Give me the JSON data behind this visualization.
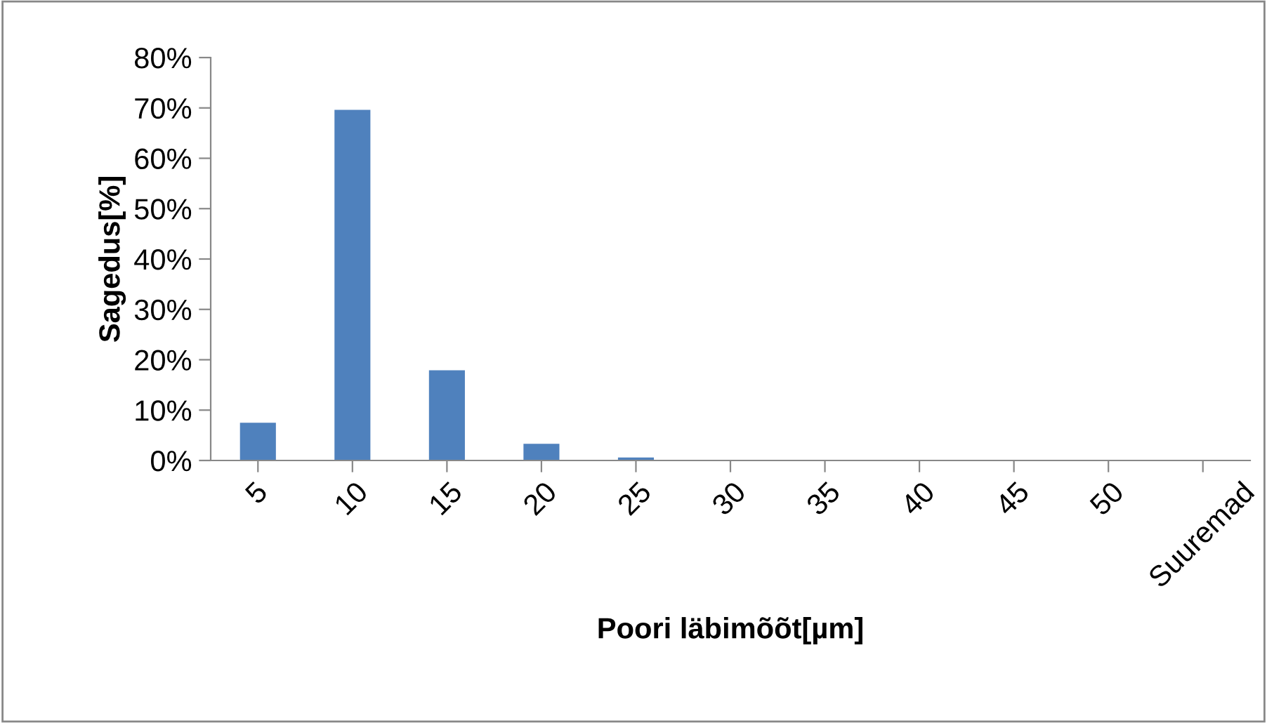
{
  "chart_data": {
    "type": "bar",
    "xlabel": "Poori läbimõõt[µm]",
    "ylabel": "Sagedus[%]",
    "categories": [
      "5",
      "10",
      "15",
      "20",
      "25",
      "30",
      "35",
      "40",
      "45",
      "50",
      "Suuremad"
    ],
    "values": [
      7.5,
      69.6,
      17.9,
      3.3,
      0.6,
      0,
      0,
      0,
      0,
      0,
      0
    ],
    "color": "#4f81bd",
    "ylim": [
      0,
      80
    ],
    "yticks": [
      {
        "value": 0,
        "label": "0%"
      },
      {
        "value": 10,
        "label": "10%"
      },
      {
        "value": 20,
        "label": "20%"
      },
      {
        "value": 30,
        "label": "30%"
      },
      {
        "value": 40,
        "label": "40%"
      },
      {
        "value": 50,
        "label": "50%"
      },
      {
        "value": 60,
        "label": "60%"
      },
      {
        "value": 70,
        "label": "70%"
      },
      {
        "value": 80,
        "label": "80%"
      }
    ],
    "grid": false,
    "legend": false
  }
}
